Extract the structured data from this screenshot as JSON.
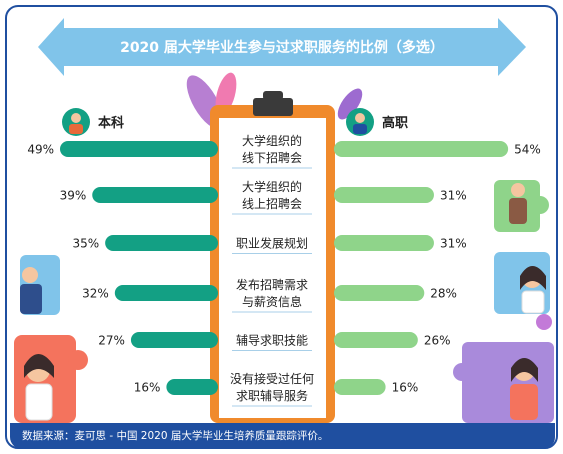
{
  "title": "2020 届大学毕业生参与过求职服务的比例（多选）",
  "footer": "数据来源：麦可思 - 中国 2020 届大学毕业生培养质量跟踪评价。",
  "colors": {
    "undergrad_bar": "#13a084",
    "vocational_bar": "#8fd48a",
    "banner": "#80c4ea",
    "board": "#f08a2c",
    "footer": "#1f4fa0"
  },
  "chart_data": {
    "type": "bar",
    "title": "2020 届大学毕业生参与过求职服务的比例（多选）",
    "categories": [
      [
        "大学组织的",
        "线下招聘会"
      ],
      [
        "大学组织的",
        "线上招聘会"
      ],
      [
        "职业发展规划"
      ],
      [
        "发布招聘需求",
        "与薪资信息"
      ],
      [
        "辅导求职技能"
      ],
      [
        "没有接受过任何",
        "求职辅导服务"
      ]
    ],
    "series": [
      {
        "name": "本科",
        "values": [
          49,
          39,
          35,
          32,
          27,
          16
        ]
      },
      {
        "name": "高职",
        "values": [
          54,
          31,
          31,
          28,
          26,
          16
        ]
      }
    ],
    "value_suffix": "%",
    "xlim": [
      0,
      60
    ]
  }
}
